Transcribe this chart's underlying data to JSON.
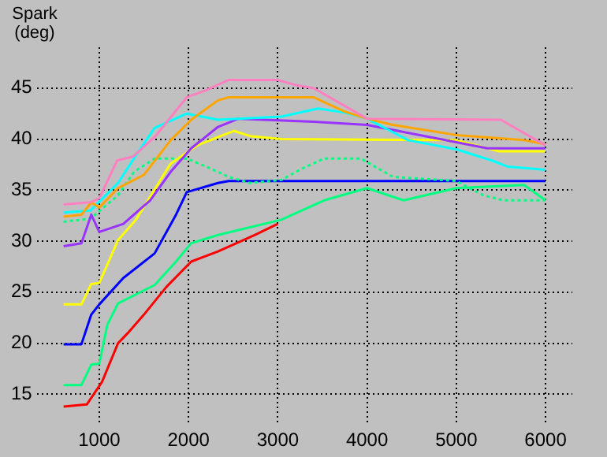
{
  "chart_data": {
    "type": "line",
    "ylabel": "Spark (deg)",
    "xlim": [
      300,
      6300
    ],
    "ylim": [
      12,
      49
    ],
    "xticks": [
      1000,
      2000,
      3000,
      4000,
      5000,
      6000
    ],
    "yticks": [
      15,
      20,
      25,
      30,
      35,
      40,
      45
    ],
    "grid": true,
    "legend": false,
    "marker": "none",
    "line_style": "solid",
    "series": [
      {
        "color": "#ff80c0",
        "x": [
          600,
          900,
          1000,
          1200,
          1380,
          1620,
          1980,
          2200,
          2450,
          3000,
          3200,
          3400,
          4000,
          5500,
          6000
        ],
        "values": [
          33.6,
          33.8,
          34.2,
          37.9,
          38.3,
          40.2,
          44.1,
          44.8,
          45.8,
          45.8,
          45.3,
          45.0,
          42.0,
          41.9,
          39.4
        ]
      },
      {
        "color": "#ffa500",
        "x": [
          600,
          800,
          910,
          1000,
          1210,
          1500,
          1800,
          2030,
          2330,
          2450,
          3400,
          3750,
          4000,
          4290,
          5000,
          5760,
          6000
        ],
        "values": [
          32.4,
          32.6,
          33.8,
          33.3,
          35.2,
          36.5,
          39.9,
          41.9,
          43.8,
          44.1,
          44.1,
          42.7,
          42.0,
          41.4,
          40.4,
          39.9,
          39.5
        ]
      },
      {
        "color": "#00ffff",
        "x": [
          600,
          900,
          1210,
          1440,
          1620,
          1980,
          2330,
          3040,
          3450,
          3750,
          4000,
          4460,
          5000,
          5400,
          5580,
          6000
        ],
        "values": [
          32.8,
          33.0,
          35.7,
          38.8,
          41.1,
          42.5,
          41.9,
          42.2,
          43.0,
          42.6,
          42.0,
          39.9,
          39.0,
          37.9,
          37.3,
          37.0
        ]
      },
      {
        "color": "#9933ff",
        "x": [
          600,
          800,
          910,
          1000,
          1270,
          1570,
          1800,
          2030,
          2330,
          2560,
          3400,
          4000,
          4820,
          5350,
          6000
        ],
        "values": [
          29.5,
          29.8,
          32.6,
          30.9,
          31.7,
          34.0,
          36.8,
          39.1,
          41.2,
          42.0,
          41.7,
          41.4,
          40.0,
          39.1,
          39.1
        ]
      },
      {
        "color": "#ffff00",
        "x": [
          600,
          800,
          910,
          1000,
          1210,
          1410,
          1800,
          2100,
          2510,
          2690,
          3040,
          5000,
          5480,
          6000
        ],
        "values": [
          23.8,
          23.8,
          25.8,
          25.9,
          30.1,
          32.1,
          37.6,
          39.4,
          40.8,
          40.3,
          40.0,
          39.9,
          38.8,
          38.8
        ]
      },
      {
        "color": "#00ff80",
        "line_style": "dotted",
        "x": [
          600,
          900,
          1210,
          1390,
          1620,
          1980,
          2200,
          2450,
          2690,
          3040,
          3270,
          3520,
          3930,
          4290,
          5000,
          5300,
          5530,
          6000
        ],
        "values": [
          31.9,
          32.2,
          34.5,
          36.8,
          38.1,
          38.1,
          37.3,
          36.3,
          35.7,
          36.0,
          37.1,
          38.1,
          38.1,
          36.3,
          35.9,
          34.5,
          34.0,
          34.0
        ]
      },
      {
        "color": "#0000ff",
        "x": [
          600,
          800,
          910,
          1000,
          1270,
          1620,
          1860,
          1980,
          2330,
          2450,
          6000
        ],
        "values": [
          19.9,
          19.9,
          22.8,
          23.8,
          26.4,
          28.8,
          32.6,
          34.8,
          35.7,
          35.9,
          35.9
        ]
      },
      {
        "color": "#00ff80",
        "x": [
          600,
          800,
          910,
          1000,
          1090,
          1210,
          1620,
          1860,
          2030,
          2330,
          3040,
          3520,
          4000,
          4410,
          5000,
          5760,
          6000
        ],
        "values": [
          15.9,
          15.9,
          17.9,
          18.0,
          21.8,
          23.9,
          25.7,
          28.0,
          29.8,
          30.6,
          32.1,
          34.0,
          35.2,
          34.0,
          35.2,
          35.5,
          34.0
        ]
      },
      {
        "color": "#ff0000",
        "x": [
          600,
          860,
          1030,
          1210,
          1320,
          1500,
          1750,
          2030,
          2330,
          2740,
          3000
        ],
        "values": [
          13.8,
          14.0,
          16.2,
          20.0,
          21.0,
          22.8,
          25.5,
          28.0,
          29.0,
          30.6,
          31.7
        ]
      }
    ]
  }
}
